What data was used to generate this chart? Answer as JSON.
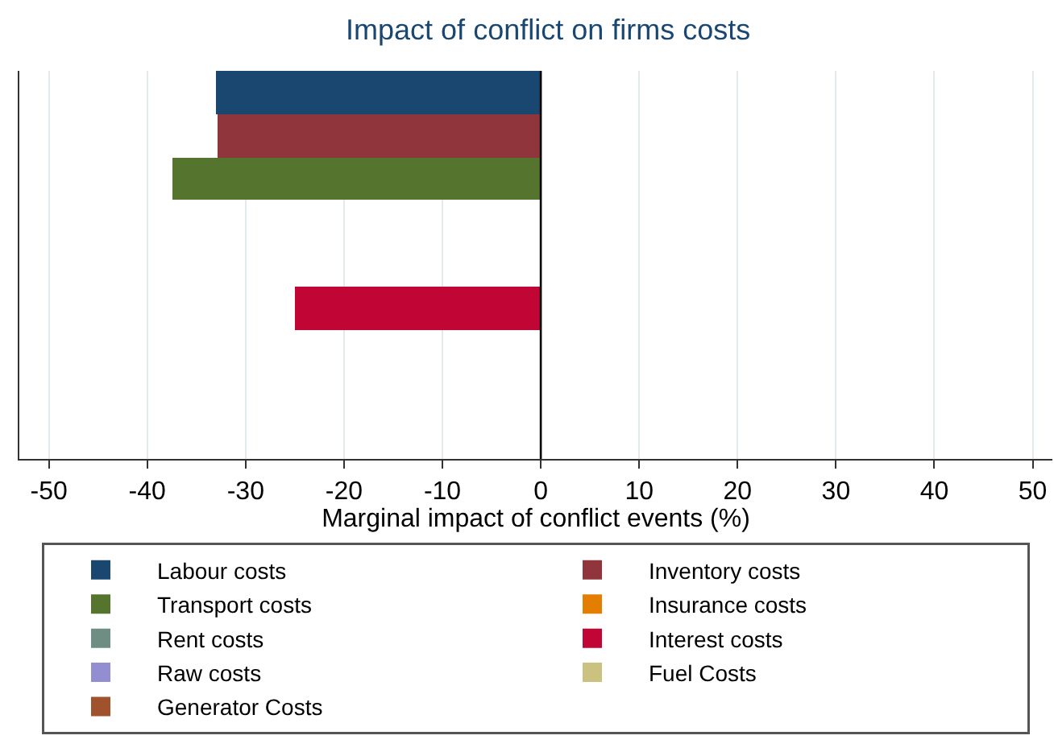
{
  "chart_data": {
    "type": "bar",
    "orientation": "horizontal",
    "stacked": true,
    "title": "Impact of conflict on firms costs",
    "xlabel": "Marginal impact of conflict events (%)",
    "categories": [
      null,
      null,
      null,
      null,
      null,
      null,
      null,
      null,
      null
    ],
    "series": [
      {
        "name": "Labour costs",
        "color": "#1a476f",
        "values": [
          -33,
          null,
          null,
          null,
          null,
          null,
          null,
          null,
          null
        ]
      },
      {
        "name": "Inventory costs",
        "color": "#90353b",
        "values": [
          null,
          -32.8,
          null,
          null,
          null,
          null,
          null,
          null,
          null
        ]
      },
      {
        "name": "Transport costs",
        "color": "#55752f",
        "values": [
          null,
          null,
          -37.5,
          null,
          null,
          null,
          null,
          null,
          null
        ]
      },
      {
        "name": "Insurance costs",
        "color": "#e37e00",
        "values": [
          null,
          null,
          null,
          0,
          null,
          null,
          null,
          null,
          null
        ]
      },
      {
        "name": "Rent costs",
        "color": "#6e8e84",
        "values": [
          null,
          null,
          null,
          null,
          0,
          null,
          null,
          null,
          null
        ]
      },
      {
        "name": "Interest costs",
        "color": "#c10534",
        "values": [
          null,
          null,
          null,
          null,
          null,
          -25,
          null,
          null,
          null
        ]
      },
      {
        "name": "Raw costs",
        "color": "#938dd2",
        "values": [
          null,
          null,
          null,
          null,
          null,
          null,
          0,
          null,
          null
        ]
      },
      {
        "name": "Fuel Costs",
        "color": "#cac27e",
        "values": [
          null,
          null,
          null,
          null,
          null,
          null,
          null,
          0,
          null
        ]
      },
      {
        "name": "Generator Costs",
        "color": "#a0522d",
        "values": [
          null,
          null,
          null,
          null,
          null,
          null,
          null,
          null,
          0
        ]
      }
    ],
    "xlim": [
      -53,
      52
    ],
    "xticks": [
      -50,
      -40,
      -30,
      -20,
      -10,
      0,
      10,
      20,
      30,
      40,
      50
    ],
    "ref_lines": [
      {
        "axis": "x",
        "value": 0,
        "color": "#000000"
      }
    ],
    "grid": "x",
    "legend": "bottom",
    "tick_labels": "x"
  }
}
